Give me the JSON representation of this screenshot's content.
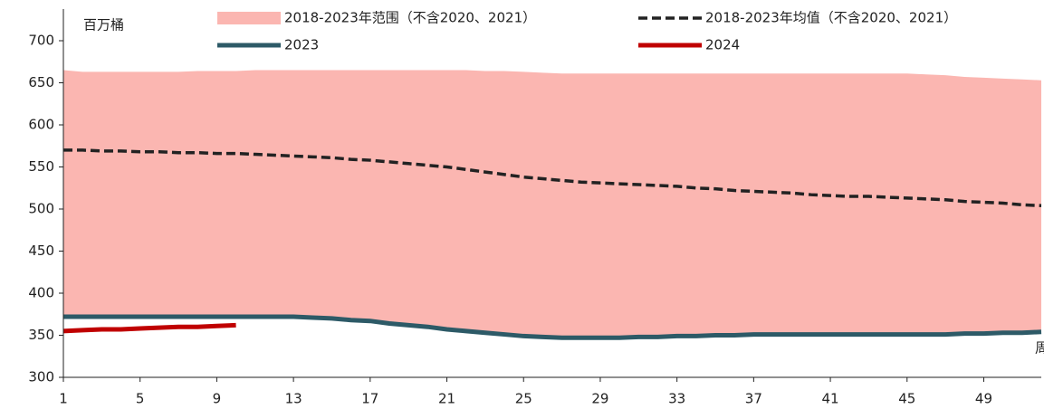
{
  "chart_data": {
    "type": "line",
    "y_unit": "百万桶",
    "x_unit": "周",
    "x": [
      1,
      2,
      3,
      4,
      5,
      6,
      7,
      8,
      9,
      10,
      11,
      12,
      13,
      14,
      15,
      16,
      17,
      18,
      19,
      20,
      21,
      22,
      23,
      24,
      25,
      26,
      27,
      28,
      29,
      30,
      31,
      32,
      33,
      34,
      35,
      36,
      37,
      38,
      39,
      40,
      41,
      42,
      43,
      44,
      45,
      46,
      47,
      48,
      49,
      50,
      51,
      52
    ],
    "xlim": [
      1,
      52
    ],
    "xticks": [
      1,
      5,
      9,
      13,
      17,
      21,
      25,
      29,
      33,
      37,
      41,
      45,
      49
    ],
    "ylim": [
      300,
      700
    ],
    "yticks": [
      300,
      350,
      400,
      450,
      500,
      550,
      600,
      650,
      700
    ],
    "series": [
      {
        "name": "2018-2023年范围（不含2020、2021）",
        "color": "#fbb6b1",
        "style": "range",
        "high": [
          665,
          663,
          663,
          663,
          663,
          663,
          663,
          664,
          664,
          664,
          665,
          665,
          665,
          665,
          665,
          665,
          665,
          665,
          665,
          665,
          665,
          665,
          664,
          664,
          663,
          662,
          661,
          661,
          661,
          661,
          661,
          661,
          661,
          661,
          661,
          661,
          661,
          661,
          661,
          661,
          661,
          661,
          661,
          661,
          661,
          660,
          659,
          657,
          656,
          655,
          654,
          653
        ],
        "low": [
          372,
          372,
          372,
          372,
          372,
          372,
          372,
          372,
          372,
          372,
          372,
          372,
          372,
          371,
          370,
          368,
          367,
          364,
          362,
          360,
          357,
          355,
          353,
          351,
          349,
          348,
          347,
          347,
          347,
          347,
          348,
          348,
          349,
          349,
          350,
          350,
          351,
          351,
          351,
          351,
          351,
          351,
          351,
          351,
          351,
          351,
          351,
          352,
          352,
          353,
          353,
          354
        ]
      },
      {
        "name": "2018-2023年均值（不含2020、2021）",
        "color": "#222222",
        "style": "dashed",
        "values": [
          570,
          570,
          569,
          569,
          568,
          568,
          567,
          567,
          566,
          566,
          565,
          564,
          563,
          562,
          561,
          559,
          558,
          556,
          554,
          552,
          550,
          547,
          544,
          541,
          538,
          536,
          534,
          532,
          531,
          530,
          529,
          528,
          527,
          525,
          524,
          522,
          521,
          520,
          519,
          517,
          516,
          515,
          515,
          514,
          513,
          512,
          511,
          509,
          508,
          507,
          505,
          504
        ]
      },
      {
        "name": "2023",
        "color": "#2d5a67",
        "style": "solid",
        "values": [
          372,
          372,
          372,
          372,
          372,
          372,
          372,
          372,
          372,
          372,
          372,
          372,
          372,
          371,
          370,
          368,
          367,
          364,
          362,
          360,
          357,
          355,
          353,
          351,
          349,
          348,
          347,
          347,
          347,
          347,
          348,
          348,
          349,
          349,
          350,
          350,
          351,
          351,
          351,
          351,
          351,
          351,
          351,
          351,
          351,
          351,
          351,
          352,
          352,
          353,
          353,
          354
        ]
      },
      {
        "name": "2024",
        "color": "#c00000",
        "style": "solid",
        "values": [
          355,
          356,
          357,
          357,
          358,
          359,
          360,
          360,
          361,
          362,
          null,
          null,
          null,
          null,
          null,
          null,
          null,
          null,
          null,
          null,
          null,
          null,
          null,
          null,
          null,
          null,
          null,
          null,
          null,
          null,
          null,
          null,
          null,
          null,
          null,
          null,
          null,
          null,
          null,
          null,
          null,
          null,
          null,
          null,
          null,
          null,
          null,
          null,
          null,
          null,
          null,
          null
        ]
      }
    ]
  }
}
